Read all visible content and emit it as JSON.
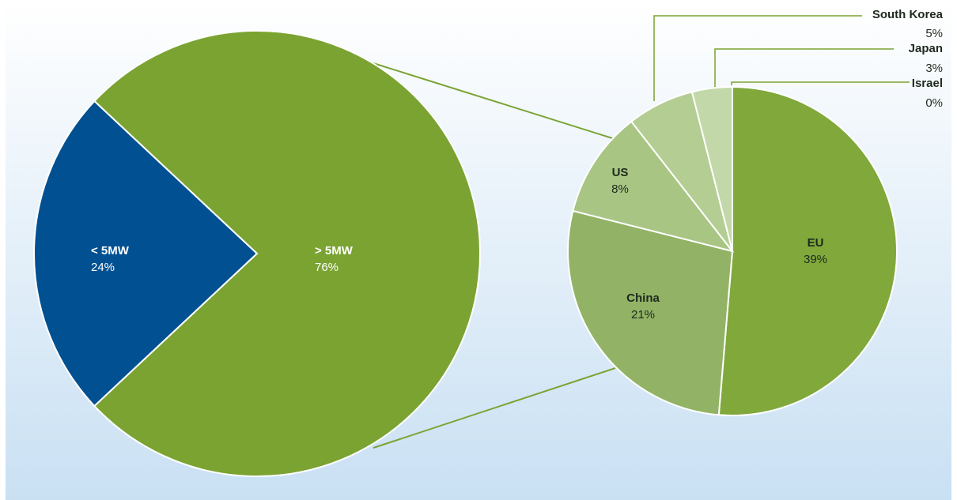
{
  "chart_data": [
    {
      "type": "pie",
      "slices": [
        {
          "label": "< 5MW",
          "value_label": "24%",
          "value": 24,
          "color": "#005092"
        },
        {
          "label": "> 5MW",
          "value_label": "76%",
          "value": 76,
          "color": "#7aa332"
        }
      ]
    },
    {
      "type": "pie",
      "slices": [
        {
          "label": "EU",
          "value_label": "39%",
          "value": 39,
          "color": "#80a83b"
        },
        {
          "label": "China",
          "value_label": "21%",
          "value": 21,
          "color": "#92b365"
        },
        {
          "label": "US",
          "value_label": "8%",
          "value": 8,
          "color": "#a8c584"
        },
        {
          "label": "South Korea",
          "value_label": "5%",
          "value": 5,
          "color": "#b4cd93"
        },
        {
          "label": "Japan",
          "value_label": "3%",
          "value": 3,
          "color": "#c3d8a8"
        },
        {
          "label": "Israel",
          "value_label": "0%",
          "value": 0,
          "color": "#cddfb6"
        }
      ]
    }
  ],
  "colors": {
    "background_top": "#ffffff",
    "background_bottom": "#c9e0f3",
    "connector": "#7aa332",
    "leader": "#7aa332"
  }
}
